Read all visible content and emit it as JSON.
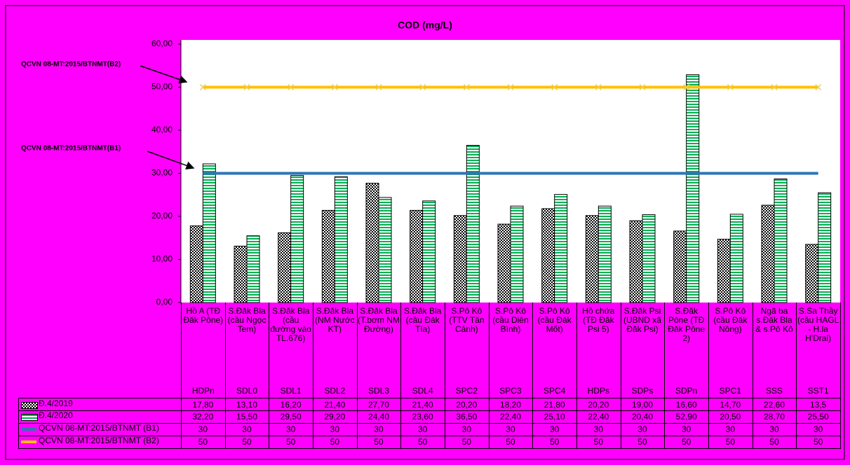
{
  "chart_data": {
    "type": "bar",
    "title": "COD (mg/L)",
    "categories": [
      "Hồ A (TĐ Đăk Pône)",
      "S.Đăk Bla (cầu Ngọc Tem)",
      "S.Đăk Bla (cầu đường vào TL.676)",
      "S.Đăk Bla (NM Nước KT)",
      "S.Đăk Bla (T.bơm NM Đường)",
      "S.Đăk Bla (cầu Đăk Tía)",
      "S.Pô Kô (TTV Tân Cảnh)",
      "S.Pô Kô (cầu Diên Bình)",
      "S.Pô Kô (cầu Đăk Mốt)",
      "Hồ chứa (TĐ Đăk Psi 5)",
      "S.Đăk Psi (UBND xã Đăk Psi)",
      "S.Đăk Pône (TĐ Đăk Pône 2)",
      "S.Pô Kô (cầu Đăk Nông)",
      "Ngã ba s.Đăk Bla & s.Pô Kô",
      "S.Sa Thầy (cầu HAGL - H.la H'Drai)"
    ],
    "codes": [
      "HDPn",
      "SDL0",
      "SDL1",
      "SDL2",
      "SDL3",
      "SDL4",
      "SPC2",
      "SPC3",
      "SPC4",
      "HDPs",
      "SDPs",
      "SDPn",
      "SPC1",
      "SSS",
      "SST1"
    ],
    "series": [
      {
        "name": "Đ.4/2019",
        "type": "bar",
        "color": "#000000",
        "values": [
          17.8,
          13.1,
          16.2,
          21.4,
          27.7,
          21.4,
          20.2,
          18.2,
          21.8,
          20.2,
          19.0,
          16.6,
          14.7,
          22.6,
          13.5
        ],
        "value_labels": [
          "17,80",
          "13,10",
          "16,20",
          "21,40",
          "27,70",
          "21,40",
          "20,20",
          "18,20",
          "21,80",
          "20,20",
          "19,00",
          "16,60",
          "14,70",
          "22,60",
          "13,5"
        ]
      },
      {
        "name": "Đ.4/2020",
        "type": "bar",
        "color": "#00b050",
        "values": [
          32.2,
          15.5,
          29.5,
          29.2,
          24.4,
          23.6,
          36.5,
          22.4,
          25.1,
          22.4,
          20.4,
          52.9,
          20.5,
          28.7,
          25.5
        ],
        "value_labels": [
          "32,20",
          "15,50",
          "29,50",
          "29,20",
          "24,40",
          "23,60",
          "36,50",
          "22,40",
          "25,10",
          "22,40",
          "20,40",
          "52,90",
          "20,50",
          "28,70",
          "25,50"
        ]
      },
      {
        "name": "QCVN 08-MT:2015/BTNMT (B1)",
        "type": "line",
        "color": "#2e75b6",
        "values": [
          30,
          30,
          30,
          30,
          30,
          30,
          30,
          30,
          30,
          30,
          30,
          30,
          30,
          30,
          30
        ]
      },
      {
        "name": "QCVN 08-MT:2015/BTNMT (B2)",
        "type": "line",
        "color": "#ffc000",
        "values": [
          50,
          50,
          50,
          50,
          50,
          50,
          50,
          50,
          50,
          50,
          50,
          50,
          50,
          50,
          50
        ]
      }
    ],
    "ylim": [
      0,
      60
    ],
    "yticks": [
      {
        "value": 0,
        "label": "0,00"
      },
      {
        "value": 10,
        "label": "10,00"
      },
      {
        "value": 20,
        "label": "20,00"
      },
      {
        "value": 30,
        "label": "30,00"
      },
      {
        "value": 40,
        "label": "40,00"
      },
      {
        "value": 50,
        "label": "50,00"
      },
      {
        "value": 60,
        "label": "60,00"
      }
    ],
    "annotations": [
      "QCVN 08-MT:2015/BTNMT(B2)",
      "QCVN 08-MT:2015/BTNMT(B1)"
    ]
  }
}
